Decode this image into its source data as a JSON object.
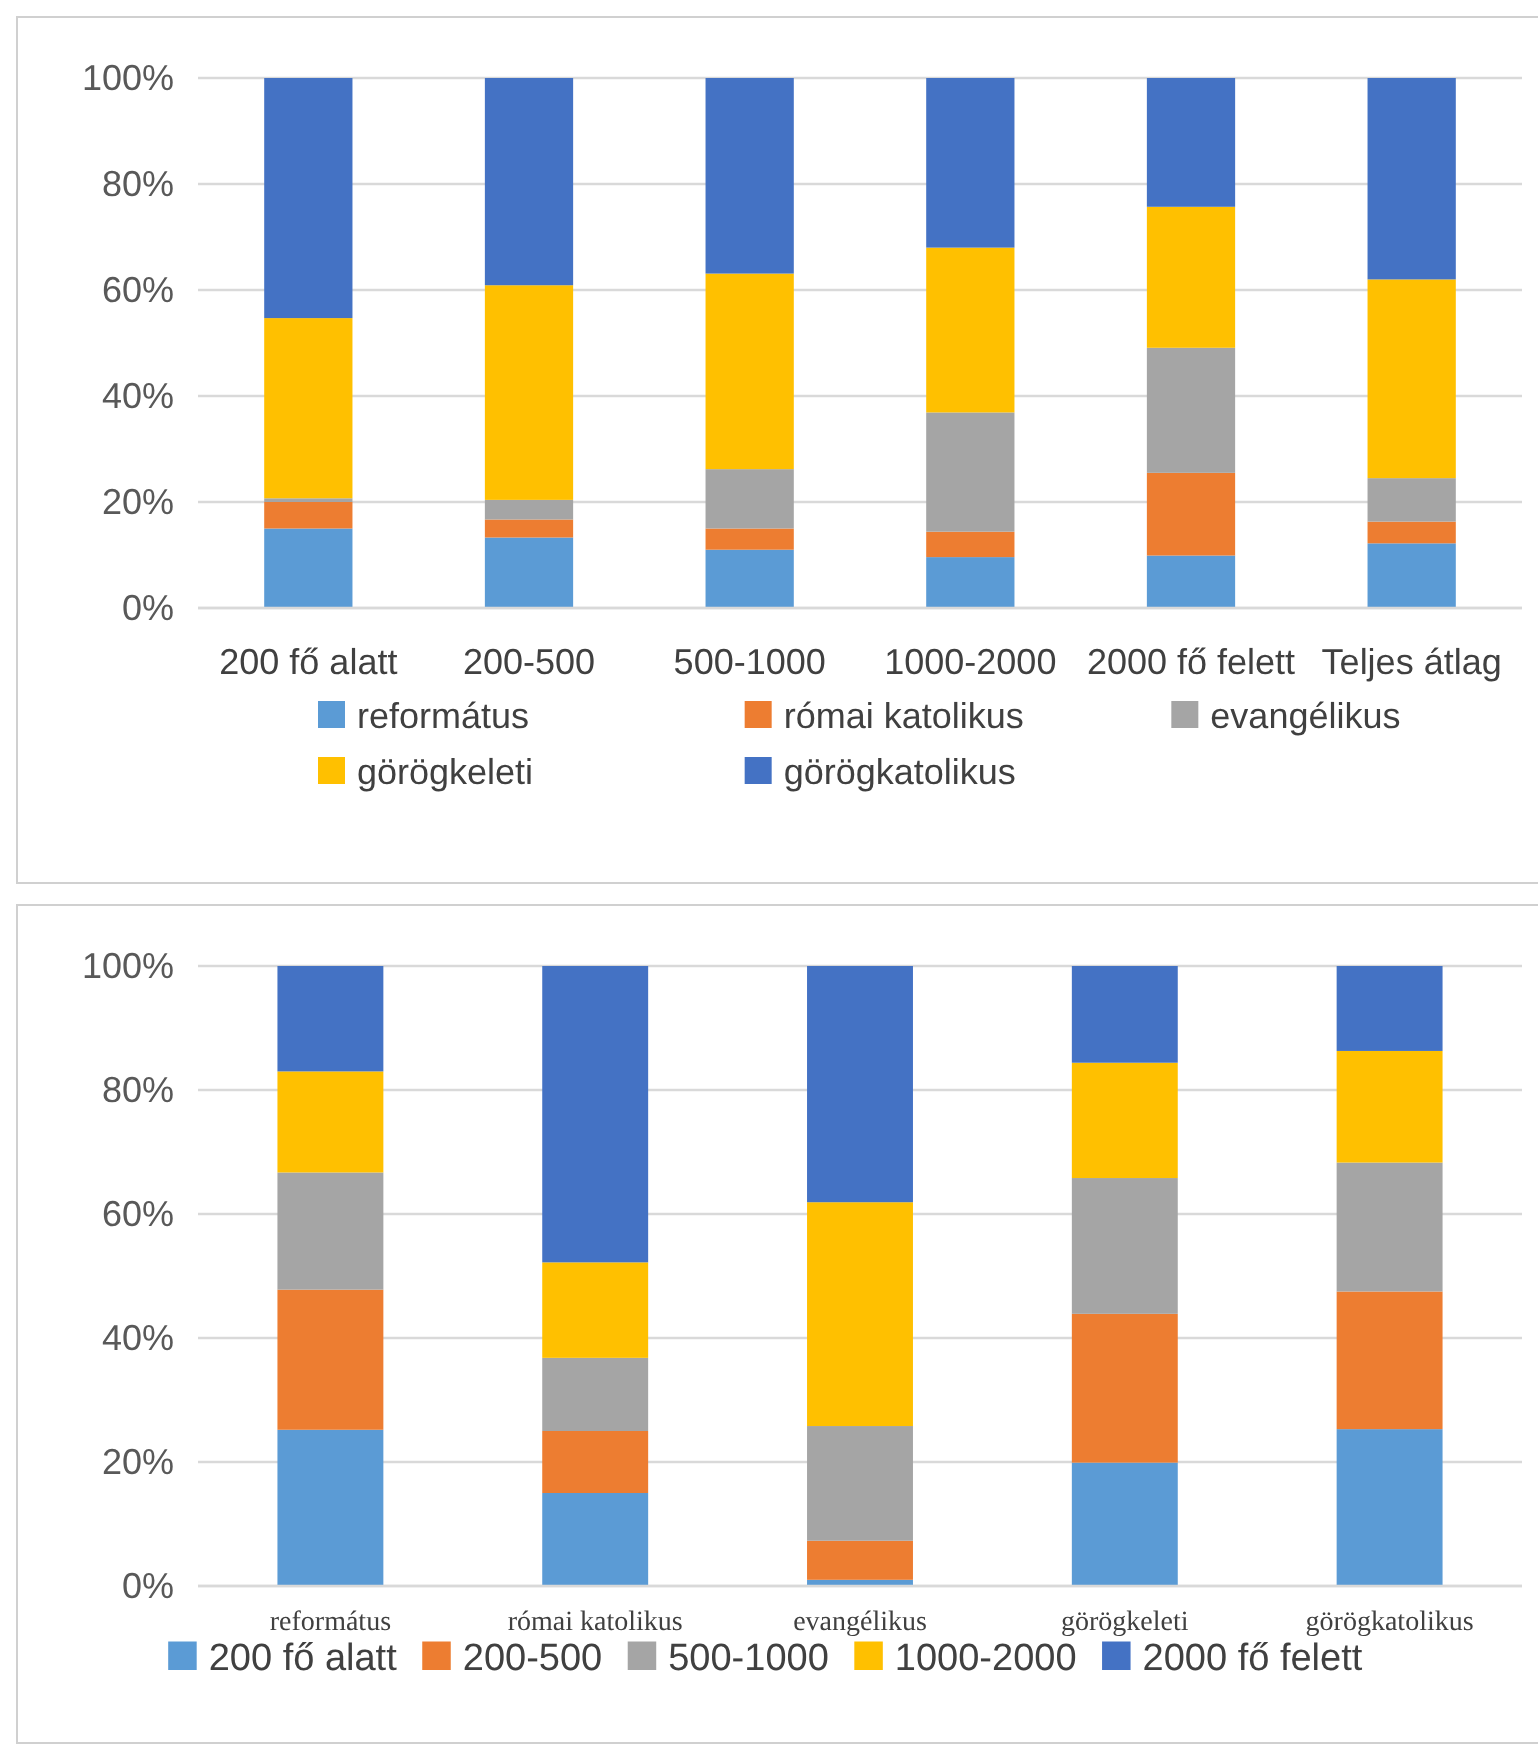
{
  "chart_data": [
    {
      "type": "bar",
      "stacked": true,
      "categories": [
        "200 fő alatt",
        "200-500",
        "500-1000",
        "1000-2000",
        "2000 fő felett",
        "Teljes átlag"
      ],
      "ylim": [
        0,
        100
      ],
      "yticks": [
        {
          "value": 0,
          "label": "0%"
        },
        {
          "value": 20,
          "label": "20%"
        },
        {
          "value": 40,
          "label": "40%"
        },
        {
          "value": 60,
          "label": "60%"
        },
        {
          "value": 80,
          "label": "80%"
        },
        {
          "value": 100,
          "label": "100%"
        }
      ],
      "grid": "y",
      "legend": "bottom",
      "series": [
        {
          "name": "református",
          "color": "#5b9bd5",
          "values": [
            15,
            13.3,
            11,
            9.6,
            9.9,
            12.2
          ]
        },
        {
          "name": "római katolikus",
          "color": "#ed7d31",
          "values": [
            5,
            3.4,
            4,
            4.8,
            15.6,
            4.1
          ]
        },
        {
          "name": "evangélikus",
          "color": "#a5a5a5",
          "values": [
            0.7,
            3.7,
            11.2,
            22.5,
            23.6,
            8.2
          ]
        },
        {
          "name": "görögkeleti",
          "color": "#ffc000",
          "values": [
            34,
            40.5,
            36.9,
            31.1,
            26.6,
            37.5
          ]
        },
        {
          "name": "görögkatolikus",
          "color": "#4472c4",
          "values": [
            45.3,
            39.1,
            36.9,
            32,
            24.3,
            38
          ]
        }
      ]
    },
    {
      "type": "bar",
      "stacked": true,
      "categories": [
        "református",
        "római katolikus",
        "evangélikus",
        "görögkeleti",
        "görögkatolikus"
      ],
      "ylim": [
        0,
        100
      ],
      "yticks": [
        {
          "value": 0,
          "label": "0%"
        },
        {
          "value": 20,
          "label": "20%"
        },
        {
          "value": 40,
          "label": "40%"
        },
        {
          "value": 60,
          "label": "60%"
        },
        {
          "value": 80,
          "label": "80%"
        },
        {
          "value": 100,
          "label": "100%"
        }
      ],
      "grid": "y",
      "legend": "bottom",
      "series": [
        {
          "name": "200 fő alatt",
          "color": "#5b9bd5",
          "values": [
            25.2,
            15,
            1,
            19.9,
            25.3
          ]
        },
        {
          "name": "200-500",
          "color": "#ed7d31",
          "values": [
            22.6,
            10,
            6.3,
            24,
            22.2
          ]
        },
        {
          "name": "500-1000",
          "color": "#a5a5a5",
          "values": [
            18.9,
            11.8,
            18.5,
            21.9,
            20.8
          ]
        },
        {
          "name": "1000-2000",
          "color": "#ffc000",
          "values": [
            16.3,
            15.4,
            36.1,
            18.6,
            18
          ]
        },
        {
          "name": "2000 fő felett",
          "color": "#4472c4",
          "values": [
            17,
            47.8,
            38.1,
            15.6,
            13.7
          ]
        }
      ]
    }
  ]
}
